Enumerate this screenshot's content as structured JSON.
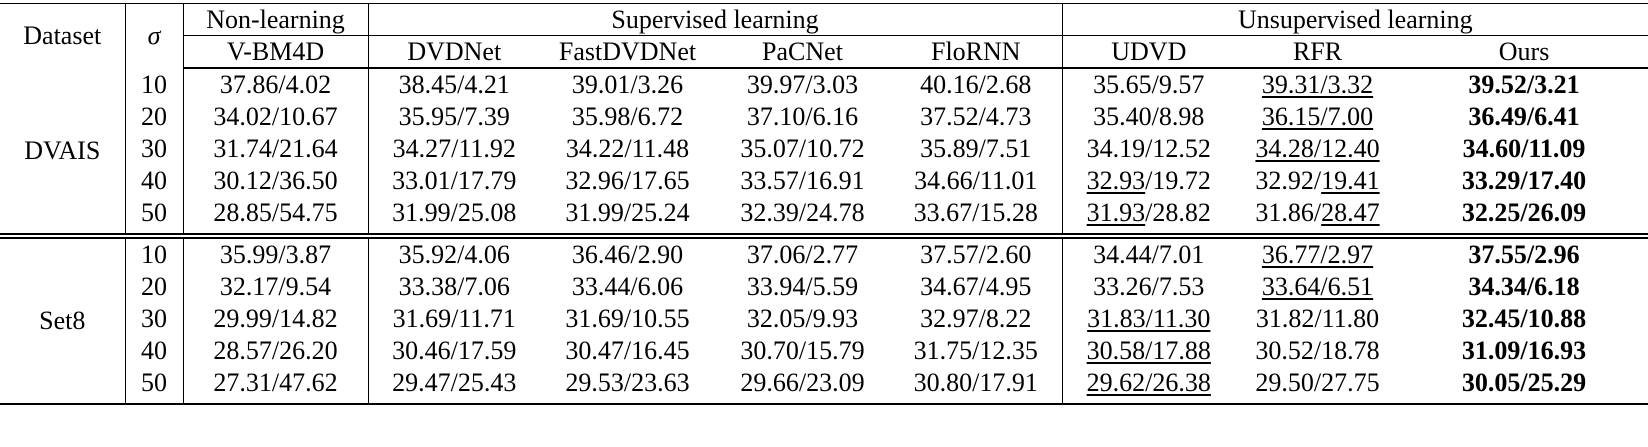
{
  "table": {
    "header": {
      "dataset": "Dataset",
      "sigma": "σ",
      "groups": [
        "Non-learning",
        "Supervised learning",
        "Unsupervised learning"
      ],
      "methods": [
        "V-BM4D",
        "DVDNet",
        "FastDVDNet",
        "PaCNet",
        "FloRNN",
        "UDVD",
        "RFR",
        "Ours"
      ]
    },
    "sections": [
      {
        "dataset": "DVAIS",
        "rows": [
          {
            "sigma": "10",
            "cells": [
              "37.86/4.02",
              "38.45/4.21",
              "39.01/3.26",
              "39.97/3.03",
              "40.16/2.68",
              "35.65/9.57",
              "39.31/3.32",
              "39.52/3.21"
            ],
            "underline": [
              {
                "col": 6,
                "part": "both"
              }
            ]
          },
          {
            "sigma": "20",
            "cells": [
              "34.02/10.67",
              "35.95/7.39",
              "35.98/6.72",
              "37.10/6.16",
              "37.52/4.73",
              "35.40/8.98",
              "36.15/7.00",
              "36.49/6.41"
            ],
            "underline": [
              {
                "col": 6,
                "part": "both"
              }
            ]
          },
          {
            "sigma": "30",
            "cells": [
              "31.74/21.64",
              "34.27/11.92",
              "34.22/11.48",
              "35.07/10.72",
              "35.89/7.51",
              "34.19/12.52",
              "34.28/12.40",
              "34.60/11.09"
            ],
            "underline": [
              {
                "col": 6,
                "part": "both"
              }
            ]
          },
          {
            "sigma": "40",
            "cells": [
              "30.12/36.50",
              "33.01/17.79",
              "32.96/17.65",
              "33.57/16.91",
              "34.66/11.01",
              "32.93/19.72",
              "32.92/19.41",
              "33.29/17.40"
            ],
            "underline": [
              {
                "col": 5,
                "part": "first"
              },
              {
                "col": 6,
                "part": "second"
              }
            ]
          },
          {
            "sigma": "50",
            "cells": [
              "28.85/54.75",
              "31.99/25.08",
              "31.99/25.24",
              "32.39/24.78",
              "33.67/15.28",
              "31.93/28.82",
              "31.86/28.47",
              "32.25/26.09"
            ],
            "underline": [
              {
                "col": 5,
                "part": "first"
              },
              {
                "col": 6,
                "part": "second"
              }
            ]
          }
        ]
      },
      {
        "dataset": "Set8",
        "rows": [
          {
            "sigma": "10",
            "cells": [
              "35.99/3.87",
              "35.92/4.06",
              "36.46/2.90",
              "37.06/2.77",
              "37.57/2.60",
              "34.44/7.01",
              "36.77/2.97",
              "37.55/2.96"
            ],
            "underline": [
              {
                "col": 6,
                "part": "both"
              }
            ]
          },
          {
            "sigma": "20",
            "cells": [
              "32.17/9.54",
              "33.38/7.06",
              "33.44/6.06",
              "33.94/5.59",
              "34.67/4.95",
              "33.26/7.53",
              "33.64/6.51",
              "34.34/6.18"
            ],
            "underline": [
              {
                "col": 6,
                "part": "both"
              }
            ]
          },
          {
            "sigma": "30",
            "cells": [
              "29.99/14.82",
              "31.69/11.71",
              "31.69/10.55",
              "32.05/9.93",
              "32.97/8.22",
              "31.83/11.30",
              "31.82/11.80",
              "32.45/10.88"
            ],
            "underline": [
              {
                "col": 5,
                "part": "both"
              }
            ]
          },
          {
            "sigma": "40",
            "cells": [
              "28.57/26.20",
              "30.46/17.59",
              "30.47/16.45",
              "30.70/15.79",
              "31.75/12.35",
              "30.58/17.88",
              "30.52/18.78",
              "31.09/16.93"
            ],
            "underline": [
              {
                "col": 5,
                "part": "both"
              }
            ]
          },
          {
            "sigma": "50",
            "cells": [
              "27.31/47.62",
              "29.47/25.43",
              "29.53/23.63",
              "29.66/23.09",
              "30.80/17.91",
              "29.62/26.38",
              "29.50/27.75",
              "30.05/25.29"
            ],
            "underline": [
              {
                "col": 5,
                "part": "both"
              }
            ]
          }
        ]
      }
    ]
  }
}
